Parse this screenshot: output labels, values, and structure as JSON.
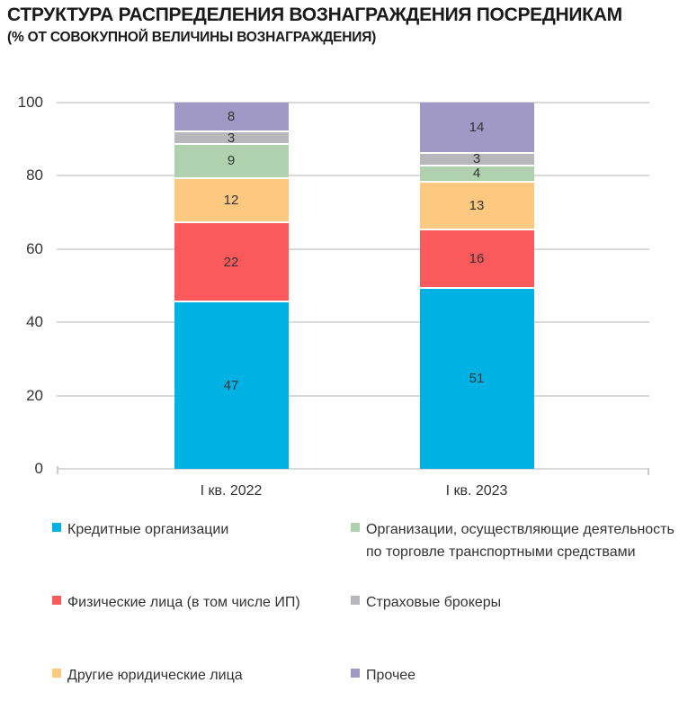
{
  "header": {
    "title": "СТРУКТУРА РАСПРЕДЕЛЕНИЯ ВОЗНАГРАЖДЕНИЯ ПОСРЕДНИКАМ",
    "subtitle": "(% ОТ СОВОКУПНОЙ ВЕЛИЧИНЫ ВОЗНАГРАЖДЕНИЯ)"
  },
  "chart_data": {
    "type": "bar",
    "stacked": true,
    "categories": [
      "I кв. 2022",
      "I кв. 2023"
    ],
    "series": [
      {
        "name": "Кредитные организации",
        "color": "#00b2e4",
        "values": [
          47,
          51
        ]
      },
      {
        "name": "Физические лица (в том числе ИП)",
        "color": "#fb5a5c",
        "values": [
          22,
          16
        ]
      },
      {
        "name": "Другие юридические лица",
        "color": "#fdc981",
        "values": [
          12,
          13
        ]
      },
      {
        "name": "Организации, осуществляющие деятельность\nпо торговле транспортными средствами",
        "color": "#b0d1ae",
        "values": [
          9,
          4
        ]
      },
      {
        "name": "Страховые брокеры",
        "color": "#b8b7bc",
        "values": [
          3,
          3
        ]
      },
      {
        "name": "Прочее",
        "color": "#a199c5",
        "values": [
          8,
          14
        ]
      }
    ],
    "stack_order_bottom_to_top": [
      0,
      1,
      2,
      3,
      4,
      5
    ],
    "legend_order": [
      0,
      3,
      1,
      4,
      2,
      5
    ],
    "yticks": [
      0,
      20,
      40,
      60,
      80,
      100
    ],
    "ylim": [
      0,
      100
    ],
    "grid": true,
    "legend_position": "bottom",
    "gridline_color": "#d9d9d9",
    "label_color": "#333333"
  }
}
